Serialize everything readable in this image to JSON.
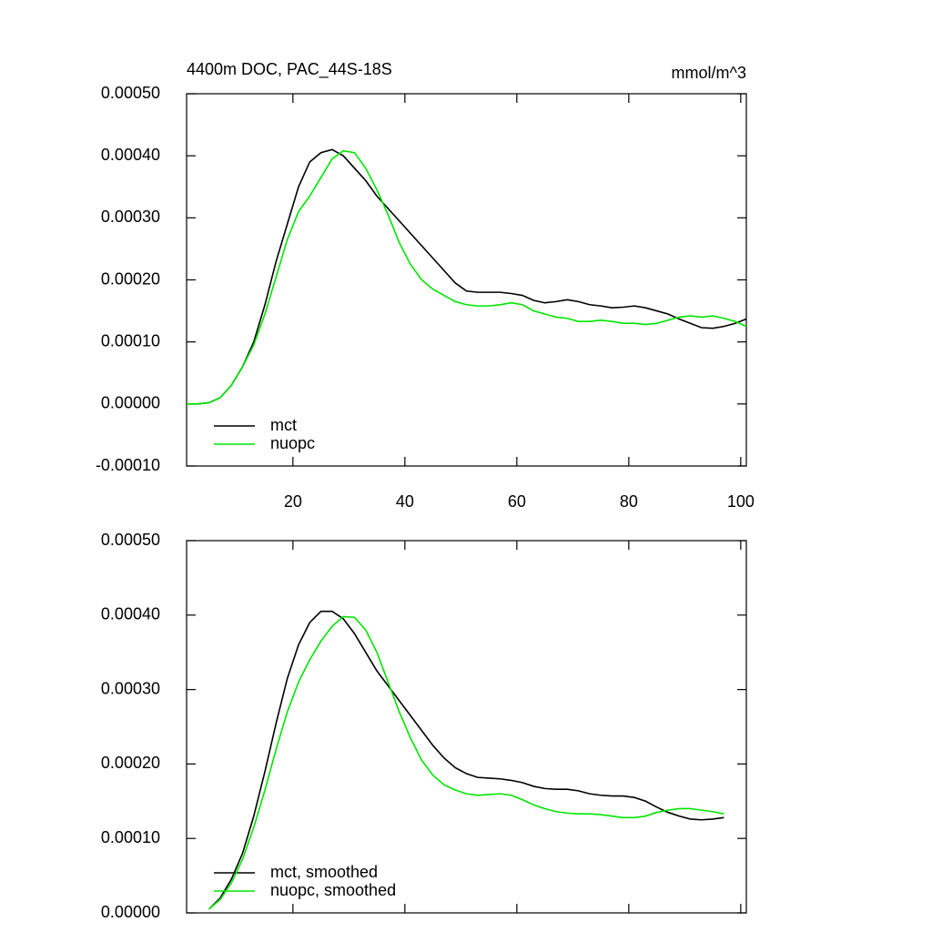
{
  "chart_data": [
    {
      "type": "line",
      "title": "4400m DOC, PAC_44S-18S",
      "units_label": "mmol/m^3",
      "x": [
        1,
        3,
        5,
        7,
        9,
        11,
        13,
        15,
        17,
        19,
        21,
        23,
        25,
        27,
        29,
        31,
        33,
        35,
        37,
        39,
        41,
        43,
        45,
        47,
        49,
        51,
        53,
        55,
        57,
        59,
        61,
        63,
        65,
        67,
        69,
        71,
        73,
        75,
        77,
        79,
        81,
        83,
        85,
        87,
        89,
        91,
        93,
        95,
        97,
        99,
        101
      ],
      "series": [
        {
          "name": "mct",
          "color": "#000000",
          "values": [
            0,
            0,
            2e-06,
            1e-05,
            3e-05,
            6e-05,
            0.0001,
            0.00016,
            0.00023,
            0.00029,
            0.00035,
            0.00039,
            0.000405,
            0.00041,
            0.0004,
            0.00038,
            0.00036,
            0.000335,
            0.000315,
            0.000295,
            0.000275,
            0.000255,
            0.000235,
            0.000215,
            0.000195,
            0.000182,
            0.00018,
            0.00018,
            0.00018,
            0.000178,
            0.000175,
            0.000167,
            0.000163,
            0.000165,
            0.000168,
            0.000165,
            0.00016,
            0.000158,
            0.000155,
            0.000156,
            0.000158,
            0.000155,
            0.00015,
            0.000145,
            0.000137,
            0.00013,
            0.000123,
            0.000122,
            0.000125,
            0.00013,
            0.000137
          ]
        },
        {
          "name": "nuopc",
          "color": "#00e600",
          "values": [
            0,
            0,
            2e-06,
            1e-05,
            3e-05,
            6e-05,
            9.5e-05,
            0.000145,
            0.000205,
            0.000265,
            0.00031,
            0.000335,
            0.000365,
            0.000395,
            0.000408,
            0.000405,
            0.00038,
            0.000345,
            0.000305,
            0.00026,
            0.000225,
            0.0002,
            0.000185,
            0.000175,
            0.000165,
            0.00016,
            0.000158,
            0.000158,
            0.00016,
            0.000163,
            0.00016,
            0.00015,
            0.000145,
            0.00014,
            0.000138,
            0.000133,
            0.000133,
            0.000135,
            0.000133,
            0.00013,
            0.00013,
            0.000128,
            0.00013,
            0.000135,
            0.00014,
            0.000142,
            0.00014,
            0.000142,
            0.000138,
            0.000133,
            0.000125
          ]
        }
      ],
      "xlim": [
        1,
        101
      ],
      "ylim": [
        -0.0001,
        0.0005
      ],
      "xticks": [
        20,
        40,
        60,
        80,
        100
      ],
      "yticks": [
        {
          "value": -0.0001,
          "label": "-0.00010"
        },
        {
          "value": 0,
          "label": "0.00000"
        },
        {
          "value": 0.0001,
          "label": "0.00010"
        },
        {
          "value": 0.0002,
          "label": "0.00020"
        },
        {
          "value": 0.0003,
          "label": "0.00030"
        },
        {
          "value": 0.0004,
          "label": "0.00040"
        },
        {
          "value": 0.0005,
          "label": "0.00050"
        }
      ],
      "legend": "lower left"
    },
    {
      "type": "line",
      "x": [
        5,
        7,
        9,
        11,
        13,
        15,
        17,
        19,
        21,
        23,
        25,
        27,
        29,
        31,
        33,
        35,
        37,
        39,
        41,
        43,
        45,
        47,
        49,
        51,
        53,
        55,
        57,
        59,
        61,
        63,
        65,
        67,
        69,
        71,
        73,
        75,
        77,
        79,
        81,
        83,
        85,
        87,
        89,
        91,
        93,
        95,
        97
      ],
      "series": [
        {
          "name": "mct, smoothed",
          "color": "#000000",
          "values": [
            5e-06,
            2e-05,
            4.5e-05,
            8e-05,
            0.00013,
            0.00019,
            0.000255,
            0.000315,
            0.00036,
            0.00039,
            0.000405,
            0.000405,
            0.000395,
            0.000375,
            0.00035,
            0.000325,
            0.000305,
            0.000285,
            0.000265,
            0.000245,
            0.000225,
            0.000208,
            0.000195,
            0.000187,
            0.000182,
            0.000181,
            0.00018,
            0.000178,
            0.000175,
            0.00017,
            0.000167,
            0.000166,
            0.000166,
            0.000164,
            0.00016,
            0.000158,
            0.000157,
            0.000157,
            0.000155,
            0.00015,
            0.000142,
            0.000135,
            0.00013,
            0.000126,
            0.000125,
            0.000126,
            0.000128
          ]
        },
        {
          "name": "nuopc, smoothed",
          "color": "#00e600",
          "values": [
            5e-06,
            1.8e-05,
            4e-05,
            7.2e-05,
            0.000115,
            0.000165,
            0.00022,
            0.00027,
            0.00031,
            0.00034,
            0.000365,
            0.000385,
            0.000398,
            0.000397,
            0.00038,
            0.00035,
            0.00031,
            0.00027,
            0.000235,
            0.000205,
            0.000185,
            0.000172,
            0.000165,
            0.00016,
            0.000158,
            0.000159,
            0.00016,
            0.000158,
            0.000152,
            0.000145,
            0.00014,
            0.000136,
            0.000134,
            0.000133,
            0.000133,
            0.000132,
            0.00013,
            0.000128,
            0.000128,
            0.00013,
            0.000135,
            0.000138,
            0.00014,
            0.00014,
            0.000138,
            0.000136,
            0.000133
          ]
        }
      ],
      "xlim": [
        1,
        101
      ],
      "ylim": [
        0,
        0.0005
      ],
      "xticks": [
        20,
        40,
        60,
        80,
        100
      ],
      "yticks": [
        {
          "value": 0,
          "label": "0.00000"
        },
        {
          "value": 0.0001,
          "label": "0.00010"
        },
        {
          "value": 0.0002,
          "label": "0.00020"
        },
        {
          "value": 0.0003,
          "label": "0.00030"
        },
        {
          "value": 0.0004,
          "label": "0.00040"
        },
        {
          "value": 0.0005,
          "label": "0.00050"
        }
      ],
      "legend": "lower left"
    }
  ]
}
